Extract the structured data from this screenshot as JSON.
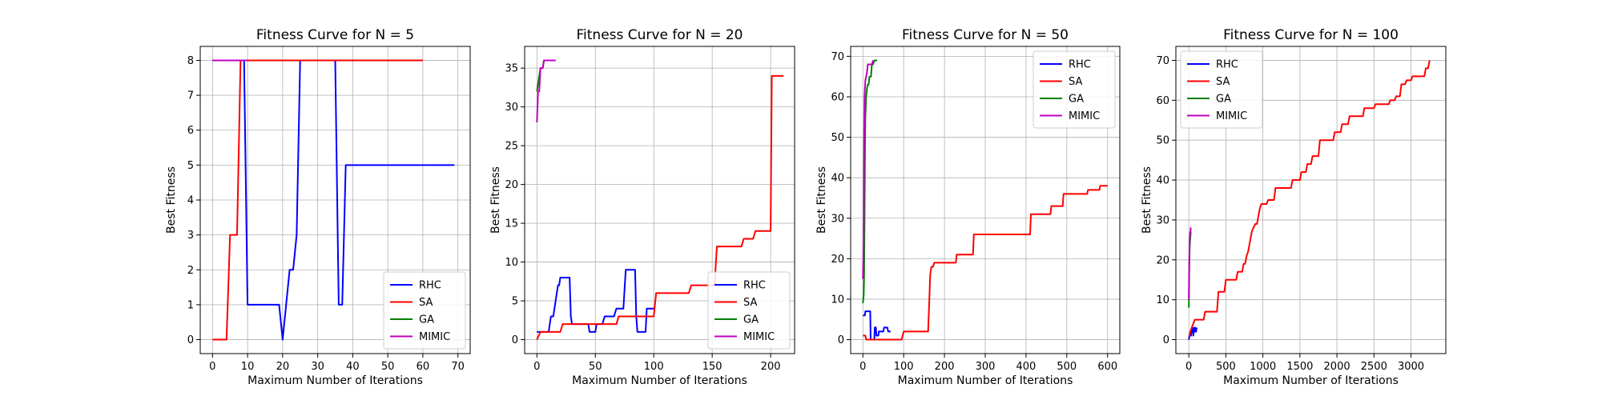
{
  "chart_data": [
    {
      "type": "line",
      "title": "Fitness Curve for N = 5",
      "xlabel": "Maximum Number of Iterations",
      "ylabel": "Best Fitness",
      "xlim": [
        -3.5,
        73.5
      ],
      "ylim": [
        -0.4,
        8.4
      ],
      "xticks": [
        0,
        10,
        20,
        30,
        40,
        50,
        60,
        70
      ],
      "yticks": [
        0,
        1,
        2,
        3,
        4,
        5,
        6,
        7,
        8
      ],
      "grid": true,
      "legend_position": "lower-right",
      "series": [
        {
          "name": "RHC",
          "color": "#0000ff",
          "x": [
            0,
            8,
            9,
            10,
            19,
            20,
            21,
            22,
            23,
            24,
            25,
            26,
            34,
            35,
            36,
            37,
            38,
            39,
            69
          ],
          "y": [
            8,
            8,
            8,
            1,
            1,
            0,
            1,
            2,
            2,
            3,
            8,
            8,
            8,
            8,
            1,
            1,
            5,
            5,
            5
          ]
        },
        {
          "name": "SA",
          "color": "#ff0000",
          "x": [
            0,
            2,
            4,
            5,
            6,
            7,
            8,
            9,
            60
          ],
          "y": [
            0,
            0,
            0,
            3,
            3,
            3,
            8,
            8,
            8
          ]
        },
        {
          "name": "GA",
          "color": "#008000",
          "x": [
            0,
            1,
            2,
            3,
            4,
            5,
            6,
            7,
            8,
            9,
            10
          ],
          "y": [
            8,
            8,
            8,
            8,
            8,
            8,
            8,
            8,
            8,
            8,
            8
          ]
        },
        {
          "name": "MIMIC",
          "color": "#bf00bf",
          "x": [
            0,
            1,
            2,
            3,
            4,
            5,
            6,
            7,
            8,
            9,
            10
          ],
          "y": [
            8,
            8,
            8,
            8,
            8,
            8,
            8,
            8,
            8,
            8,
            8
          ]
        }
      ]
    },
    {
      "type": "line",
      "title": "Fitness Curve for N = 20",
      "xlabel": "Maximum Number of Iterations",
      "ylabel": "Best Fitness",
      "xlim": [
        -10.5,
        220.5
      ],
      "ylim": [
        -1.8,
        37.8
      ],
      "xticks": [
        0,
        50,
        100,
        150,
        200
      ],
      "yticks": [
        0,
        5,
        10,
        15,
        20,
        25,
        30,
        35
      ],
      "grid": true,
      "legend_position": "lower-right",
      "series": [
        {
          "name": "RHC",
          "color": "#0000ff",
          "x": [
            0,
            10,
            11,
            12,
            13,
            14,
            15,
            16,
            17,
            18,
            19,
            20,
            28,
            29,
            30,
            44,
            45,
            50,
            51,
            56,
            58,
            66,
            68,
            74,
            76,
            84,
            85,
            86,
            93,
            94,
            97,
            98,
            101
          ],
          "y": [
            1,
            1,
            2,
            3,
            3,
            3,
            4,
            5,
            6,
            7,
            7,
            8,
            8,
            3,
            2,
            2,
            1,
            1,
            2,
            2,
            3,
            3,
            4,
            4,
            9,
            9,
            3,
            1,
            1,
            4,
            4,
            4,
            4
          ]
        },
        {
          "name": "SA",
          "color": "#ff0000",
          "x": [
            0,
            3,
            4,
            20,
            22,
            45,
            47,
            68,
            70,
            100,
            102,
            130,
            132,
            152,
            154,
            175,
            177,
            185,
            187,
            200,
            201,
            211
          ],
          "y": [
            0,
            1,
            1,
            1,
            2,
            2,
            2,
            2,
            3,
            3,
            6,
            6,
            7,
            7,
            12,
            12,
            13,
            13,
            14,
            14,
            34,
            34
          ]
        },
        {
          "name": "GA",
          "color": "#008000",
          "x": [
            0,
            1,
            2,
            3,
            4,
            5,
            6,
            7,
            16
          ],
          "y": [
            32,
            33,
            34,
            35,
            35,
            35,
            36,
            36,
            36
          ]
        },
        {
          "name": "MIMIC",
          "color": "#bf00bf",
          "x": [
            0,
            1,
            2,
            3,
            4,
            5,
            6,
            16
          ],
          "y": [
            28,
            32,
            32,
            35,
            35,
            35,
            36,
            36
          ]
        }
      ]
    },
    {
      "type": "line",
      "title": "Fitness Curve for N = 50",
      "xlabel": "Maximum Number of Iterations",
      "ylabel": "Best Fitness",
      "xlim": [
        -30,
        630
      ],
      "ylim": [
        -3.45,
        72.45
      ],
      "xticks": [
        0,
        100,
        200,
        300,
        400,
        500,
        600
      ],
      "yticks": [
        0,
        10,
        20,
        30,
        40,
        50,
        60,
        70
      ],
      "grid": true,
      "legend_position": "upper-right",
      "series": [
        {
          "name": "RHC",
          "color": "#0000ff",
          "x": [
            0,
            5,
            6,
            18,
            19,
            28,
            29,
            32,
            33,
            38,
            39,
            50,
            52,
            60,
            62,
            68
          ],
          "y": [
            6,
            6,
            7,
            7,
            0,
            0,
            3,
            3,
            1,
            1,
            2,
            2,
            3,
            3,
            2,
            2
          ]
        },
        {
          "name": "SA",
          "color": "#ff0000",
          "x": [
            0,
            6,
            8,
            40,
            45,
            95,
            100,
            120,
            125,
            160,
            161,
            163,
            165,
            168,
            170,
            172,
            175,
            180,
            182,
            228,
            230,
            270,
            272,
            410,
            412,
            460,
            462,
            490,
            492,
            550,
            552,
            580,
            582,
            600
          ],
          "y": [
            1,
            1,
            0,
            0,
            0,
            0,
            2,
            2,
            2,
            2,
            5,
            10,
            16,
            18,
            18,
            18,
            19,
            19,
            19,
            19,
            21,
            21,
            26,
            26,
            31,
            31,
            33,
            33,
            36,
            36,
            37,
            37,
            38,
            38
          ]
        },
        {
          "name": "GA",
          "color": "#008000",
          "x": [
            0,
            1,
            2,
            3,
            4,
            5,
            6,
            8,
            10,
            12,
            14,
            16,
            18,
            20,
            22,
            25,
            28,
            30,
            35
          ],
          "y": [
            9,
            10,
            11,
            16,
            30,
            45,
            55,
            60,
            62,
            63,
            63,
            65,
            65,
            65,
            68,
            68,
            69,
            69,
            69
          ]
        },
        {
          "name": "MIMIC",
          "color": "#bf00bf",
          "x": [
            0,
            1,
            2,
            3,
            4,
            5,
            6,
            8,
            10,
            12,
            14,
            16,
            18,
            20,
            22,
            25
          ],
          "y": [
            15,
            20,
            30,
            50,
            60,
            62,
            64,
            65,
            66,
            68,
            68,
            68,
            68,
            68,
            68,
            69
          ]
        }
      ]
    },
    {
      "type": "line",
      "title": "Fitness Curve for N = 100",
      "xlabel": "Maximum Number of Iterations",
      "ylabel": "Best Fitness",
      "xlim": [
        -175,
        3470
      ],
      "ylim": [
        -3.5,
        73.5
      ],
      "xticks": [
        0,
        500,
        1000,
        1500,
        2000,
        2500,
        3000
      ],
      "yticks": [
        0,
        10,
        20,
        30,
        40,
        50,
        60,
        70
      ],
      "grid": true,
      "legend_position": "upper-left",
      "series": [
        {
          "name": "RHC",
          "color": "#0000ff",
          "x": [
            0,
            8,
            15,
            22,
            30,
            38,
            45,
            52,
            60,
            68,
            75,
            82,
            90,
            98,
            105
          ],
          "y": [
            0,
            1,
            1,
            2,
            1,
            3,
            2,
            3,
            1,
            2,
            3,
            2,
            3,
            2,
            3
          ]
        },
        {
          "name": "SA",
          "color": "#ff0000",
          "x": [
            0,
            10,
            20,
            40,
            60,
            80,
            100,
            200,
            220,
            380,
            400,
            480,
            500,
            640,
            660,
            720,
            740,
            760,
            780,
            800,
            850,
            870,
            900,
            920,
            960,
            980,
            1050,
            1070,
            1150,
            1170,
            1380,
            1400,
            1500,
            1520,
            1580,
            1600,
            1650,
            1670,
            1750,
            1770,
            1950,
            1970,
            2050,
            2070,
            2150,
            2170,
            2350,
            2370,
            2500,
            2520,
            2700,
            2720,
            2780,
            2800,
            2850,
            2870,
            2920,
            2940,
            3000,
            3020,
            3180,
            3200,
            3230,
            3250
          ],
          "y": [
            1,
            1,
            2,
            3,
            4,
            5,
            5,
            5,
            7,
            7,
            12,
            12,
            15,
            15,
            17,
            17,
            19,
            19,
            21,
            22,
            27,
            28,
            29,
            29,
            33,
            34,
            34,
            35,
            35,
            38,
            38,
            40,
            40,
            42,
            42,
            44,
            44,
            46,
            46,
            50,
            50,
            52,
            52,
            54,
            54,
            56,
            56,
            58,
            58,
            59,
            59,
            60,
            60,
            61,
            61,
            64,
            64,
            65,
            65,
            66,
            66,
            68,
            68,
            70
          ]
        },
        {
          "name": "GA",
          "color": "#008000",
          "x": [
            0,
            2,
            4,
            6,
            8,
            10,
            14,
            18,
            22,
            26,
            30
          ],
          "y": [
            8,
            10,
            14,
            18,
            20,
            22,
            24,
            25,
            26,
            27,
            27
          ]
        },
        {
          "name": "MIMIC",
          "color": "#bf00bf",
          "x": [
            0,
            2,
            4,
            6,
            8,
            10,
            14,
            18,
            22,
            26,
            30
          ],
          "y": [
            10,
            14,
            17,
            20,
            22,
            24,
            26,
            27,
            27,
            28,
            28
          ]
        }
      ]
    }
  ]
}
